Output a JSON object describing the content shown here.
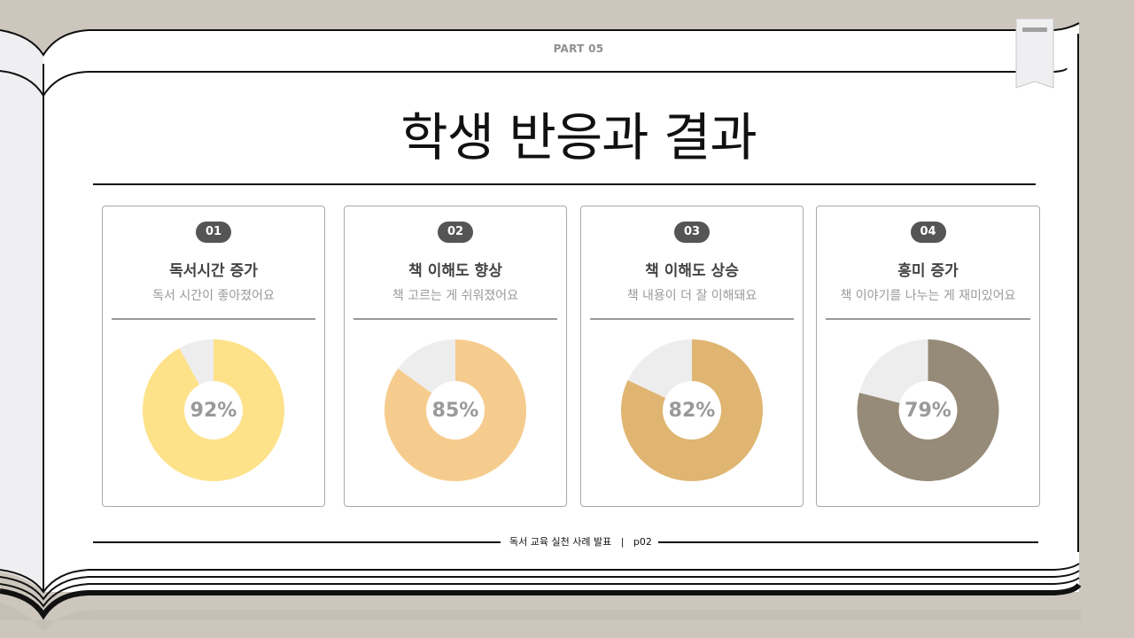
{
  "header": {
    "part": "PART 05",
    "title": "학생 반응과 결과"
  },
  "colors": {
    "background": "#ccc6bd",
    "remainder": "#eeedee",
    "text_dark": "#111111",
    "badge": "#555555"
  },
  "cards": [
    {
      "badge": "01",
      "title": "독서시간 증가",
      "subtitle": "독서 시간이 좋아졌어요",
      "percent_label": "92%",
      "color": "#fde28a"
    },
    {
      "badge": "02",
      "title": "책 이해도 향상",
      "subtitle": "책 고르는 게 쉬워졌어요",
      "percent_label": "85%",
      "color": "#f6cc8e"
    },
    {
      "badge": "03",
      "title": "책 이해도 상승",
      "subtitle": "책 내용이 더 잘 이해돼요",
      "percent_label": "82%",
      "color": "#dfb571"
    },
    {
      "badge": "04",
      "title": "흥미 증가",
      "subtitle": "책 이야기를 나누는 게 재미있어요",
      "percent_label": "79%",
      "color": "#968b78"
    }
  ],
  "chart_data": [
    {
      "type": "pie",
      "donut": true,
      "values": [
        92,
        8
      ]
    },
    {
      "type": "pie",
      "donut": true,
      "values": [
        85,
        15
      ]
    },
    {
      "type": "pie",
      "donut": true,
      "values": [
        82,
        18
      ]
    },
    {
      "type": "pie",
      "donut": true,
      "values": [
        79,
        21
      ]
    }
  ],
  "footer": {
    "text": "독서 교육 실천 사례 발표",
    "separator": "|",
    "page": "p02"
  },
  "bookmark": {
    "icon": "bookmark-icon"
  }
}
